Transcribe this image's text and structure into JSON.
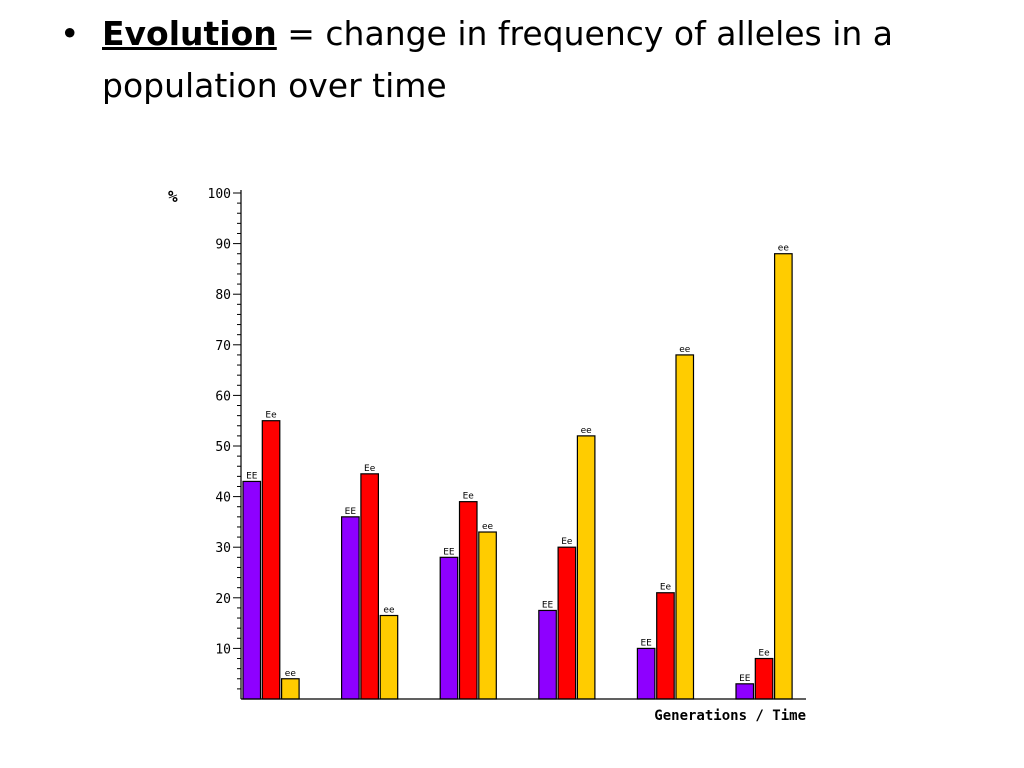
{
  "slide": {
    "bullet_symbol": "•",
    "term": "Evolution",
    "definition": " = change in frequency of alleles in a population over time"
  },
  "chart_data": {
    "type": "bar",
    "xlabel": "Generations / Time",
    "ylabel": "%",
    "ylim": [
      0,
      100
    ],
    "yticks": [
      10,
      20,
      30,
      40,
      50,
      60,
      70,
      80,
      90,
      100
    ],
    "grid": false,
    "legend": "none",
    "categories": [
      "",
      "",
      "",
      "",
      "",
      ""
    ],
    "series": [
      {
        "name": "EE",
        "color": "#8e00ff",
        "values": [
          43,
          36,
          28,
          17.5,
          10,
          3
        ]
      },
      {
        "name": "Ee",
        "color": "#ff0000",
        "values": [
          55,
          44.5,
          39,
          30,
          21,
          8
        ]
      },
      {
        "name": "ee",
        "color": "#ffcc00",
        "values": [
          4,
          16.5,
          33,
          52,
          68,
          88
        ]
      }
    ]
  }
}
